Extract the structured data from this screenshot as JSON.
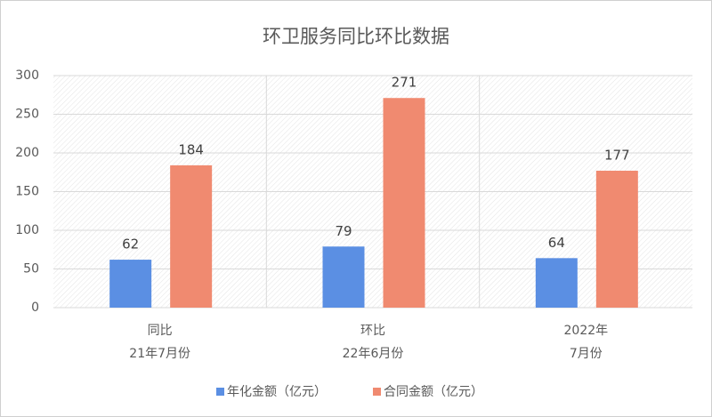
{
  "chart_data": {
    "type": "bar",
    "title": "环卫服务同比环比数据",
    "categories": [
      [
        "同比",
        "21年7月份"
      ],
      [
        "环比",
        "22年6月份"
      ],
      [
        "2022年",
        "7月份"
      ]
    ],
    "series": [
      {
        "name": "年化金额（亿元）",
        "color": "#5b8fe3",
        "values": [
          62,
          79,
          64
        ]
      },
      {
        "name": "合同金额（亿元）",
        "color": "#f08a70",
        "values": [
          184,
          271,
          177
        ]
      }
    ],
    "ylim": [
      0,
      300
    ],
    "yticks": [
      0,
      50,
      100,
      150,
      200,
      250,
      300
    ],
    "grid": true,
    "legend": "bottom"
  }
}
